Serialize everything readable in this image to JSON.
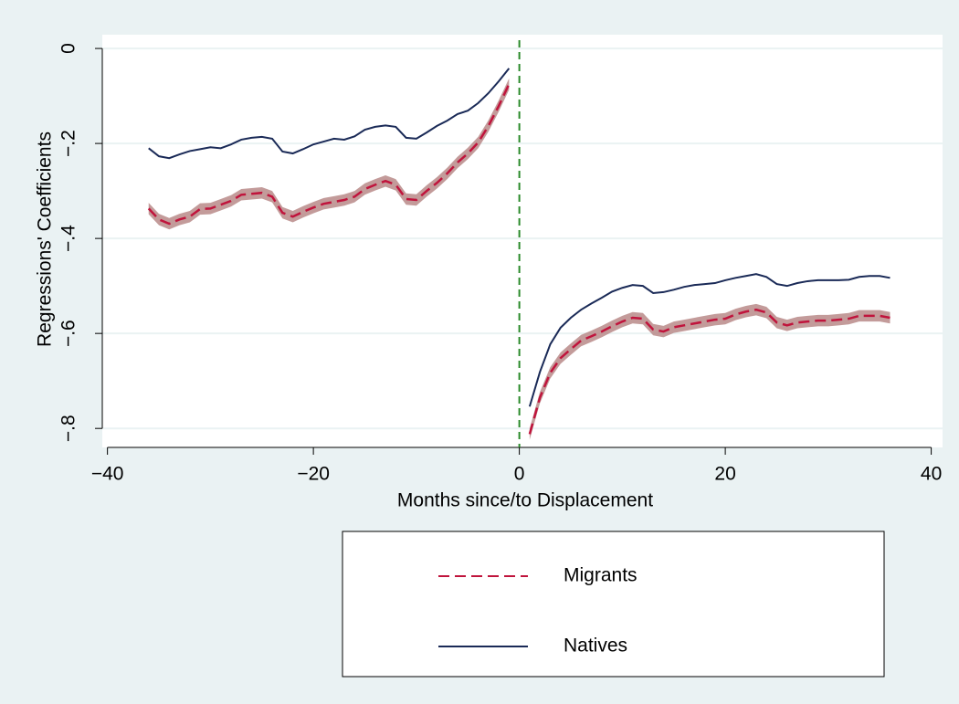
{
  "chart_data": {
    "type": "line",
    "x_label": "Months since/to Displacement",
    "y_label": "Regressions' Coefficients",
    "x": [
      -36,
      -35,
      -34,
      -33,
      -32,
      -31,
      -30,
      -29,
      -28,
      -27,
      -26,
      -25,
      -24,
      -23,
      -22,
      -21,
      -20,
      -19,
      -18,
      -17,
      -16,
      -15,
      -14,
      -13,
      -12,
      -11,
      -10,
      -9,
      -8,
      -7,
      -6,
      -5,
      -4,
      -3,
      -2,
      -1,
      0,
      1,
      2,
      3,
      4,
      5,
      6,
      7,
      8,
      9,
      10,
      11,
      12,
      13,
      14,
      15,
      16,
      17,
      18,
      19,
      20,
      21,
      22,
      23,
      24,
      25,
      26,
      27,
      28,
      29,
      30,
      31,
      32,
      33,
      34,
      35,
      36
    ],
    "series": [
      {
        "name": "Migrants",
        "color": "#c0143c",
        "style": "dashed",
        "band_color": "#b88a88",
        "ci_halfwidth": 0.012,
        "values": [
          -0.337,
          -0.36,
          -0.369,
          -0.36,
          -0.354,
          -0.338,
          -0.337,
          -0.329,
          -0.321,
          -0.308,
          -0.306,
          -0.304,
          -0.312,
          -0.346,
          -0.354,
          -0.344,
          -0.335,
          -0.327,
          -0.323,
          -0.319,
          -0.312,
          -0.296,
          -0.287,
          -0.279,
          -0.287,
          -0.317,
          -0.319,
          -0.3,
          -0.283,
          -0.263,
          -0.24,
          -0.221,
          -0.198,
          -0.163,
          -0.121,
          -0.075,
          null,
          -0.812,
          -0.735,
          -0.683,
          -0.652,
          -0.633,
          -0.615,
          -0.606,
          -0.596,
          -0.585,
          -0.575,
          -0.567,
          -0.569,
          -0.592,
          -0.596,
          -0.587,
          -0.583,
          -0.579,
          -0.575,
          -0.571,
          -0.569,
          -0.56,
          -0.554,
          -0.55,
          -0.556,
          -0.577,
          -0.583,
          -0.577,
          -0.575,
          -0.573,
          -0.573,
          -0.571,
          -0.569,
          -0.563,
          -0.563,
          -0.563,
          -0.567
        ]
      },
      {
        "name": "Natives",
        "color": "#1a2a57",
        "style": "solid",
        "values": [
          -0.21,
          -0.227,
          -0.231,
          -0.223,
          -0.216,
          -0.212,
          -0.208,
          -0.21,
          -0.202,
          -0.192,
          -0.188,
          -0.186,
          -0.19,
          -0.217,
          -0.221,
          -0.212,
          -0.202,
          -0.196,
          -0.19,
          -0.192,
          -0.185,
          -0.171,
          -0.165,
          -0.162,
          -0.165,
          -0.188,
          -0.19,
          -0.177,
          -0.163,
          -0.152,
          -0.138,
          -0.131,
          -0.115,
          -0.094,
          -0.069,
          -0.042,
          null,
          -0.754,
          -0.681,
          -0.623,
          -0.588,
          -0.567,
          -0.55,
          -0.537,
          -0.525,
          -0.512,
          -0.504,
          -0.498,
          -0.5,
          -0.515,
          -0.513,
          -0.508,
          -0.502,
          -0.498,
          -0.496,
          -0.494,
          -0.488,
          -0.483,
          -0.479,
          -0.475,
          -0.481,
          -0.496,
          -0.5,
          -0.494,
          -0.49,
          -0.488,
          -0.488,
          -0.488,
          -0.487,
          -0.481,
          -0.479,
          -0.479,
          -0.483
        ]
      }
    ],
    "xline": 0,
    "xline_color": "#2a8a2a",
    "xlim": [
      -40.5,
      41.1
    ],
    "ylim": [
      -0.84,
      0.029
    ],
    "xticks": [
      {
        "value": -40,
        "label": "−40"
      },
      {
        "value": -20,
        "label": "−20"
      },
      0,
      20,
      40
    ],
    "yticks": [
      0,
      {
        "value": -0.2,
        "label": "−.2"
      },
      {
        "value": -0.4,
        "label": "−.4"
      },
      {
        "value": -0.6,
        "label": "−.6"
      },
      {
        "value": -0.8,
        "label": "−.8"
      }
    ],
    "grid": true,
    "legend": "bottom"
  }
}
